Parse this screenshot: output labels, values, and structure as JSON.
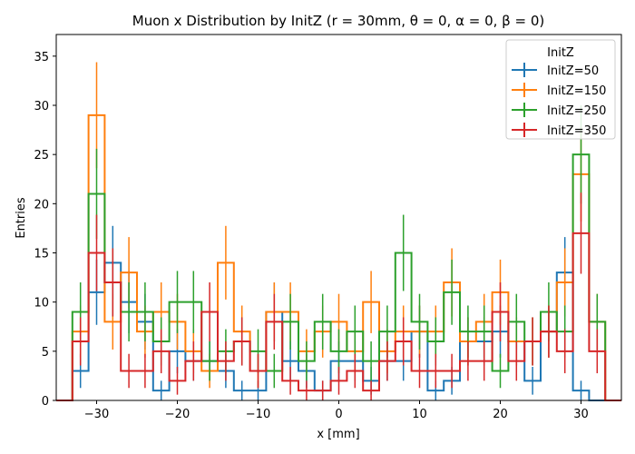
{
  "chart_data": {
    "type": "step",
    "title": "Muon x Distribution by InitZ (r = 30mm, θ = 0, α = 0, β = 0)",
    "xlabel": "x [mm]",
    "ylabel": "Entries",
    "xlim": [
      -35,
      35
    ],
    "ylim": [
      0,
      37.2
    ],
    "x_ticks": [
      -30,
      -20,
      -10,
      0,
      10,
      20,
      30
    ],
    "x_tick_labels": [
      "−30",
      "−20",
      "−10",
      "0",
      "10",
      "20",
      "30"
    ],
    "y_ticks": [
      0,
      5,
      10,
      15,
      20,
      25,
      30,
      35
    ],
    "y_tick_labels": [
      "0",
      "5",
      "10",
      "15",
      "20",
      "25",
      "30",
      "35"
    ],
    "bin_edges": [
      -33,
      -31,
      -29,
      -27,
      -25,
      -23,
      -21,
      -19,
      -17,
      -15,
      -13,
      -11,
      -9,
      -7,
      -5,
      -3,
      -1,
      1,
      3,
      5,
      7,
      9,
      11,
      13,
      15,
      17,
      19,
      21,
      23,
      25,
      27,
      29,
      31,
      33
    ],
    "errorbars": "sqrt(N)",
    "grid": false,
    "legend_title": "InitZ",
    "legend_position": "upper right",
    "series": [
      {
        "name": "InitZ=50",
        "color": "#1f77b4",
        "values": [
          3,
          11,
          14,
          10,
          8,
          1,
          5,
          4,
          4,
          3,
          1,
          1,
          9,
          4,
          3,
          1,
          4,
          4,
          2,
          4,
          4,
          7,
          1,
          2,
          6,
          6,
          7,
          6,
          2,
          7,
          13,
          1,
          0
        ]
      },
      {
        "name": "InitZ=150",
        "color": "#ff7f0e",
        "values": [
          7,
          29,
          8,
          13,
          7,
          9,
          8,
          5,
          3,
          14,
          7,
          3,
          9,
          9,
          5,
          7,
          8,
          5,
          10,
          5,
          7,
          7,
          7,
          12,
          6,
          8,
          11,
          6,
          6,
          7,
          12,
          23,
          8
        ]
      },
      {
        "name": "InitZ=250",
        "color": "#2ca02c",
        "values": [
          9,
          21,
          12,
          9,
          9,
          6,
          10,
          10,
          4,
          5,
          6,
          5,
          3,
          8,
          4,
          8,
          5,
          7,
          4,
          7,
          15,
          8,
          6,
          11,
          7,
          7,
          3,
          8,
          6,
          9,
          7,
          25,
          8
        ]
      },
      {
        "name": "InitZ=350",
        "color": "#d62728",
        "values": [
          6,
          15,
          12,
          3,
          3,
          5,
          2,
          4,
          9,
          4,
          6,
          3,
          8,
          2,
          1,
          1,
          2,
          3,
          1,
          4,
          6,
          3,
          3,
          3,
          4,
          4,
          9,
          4,
          6,
          7,
          5,
          17,
          5
        ]
      }
    ]
  }
}
